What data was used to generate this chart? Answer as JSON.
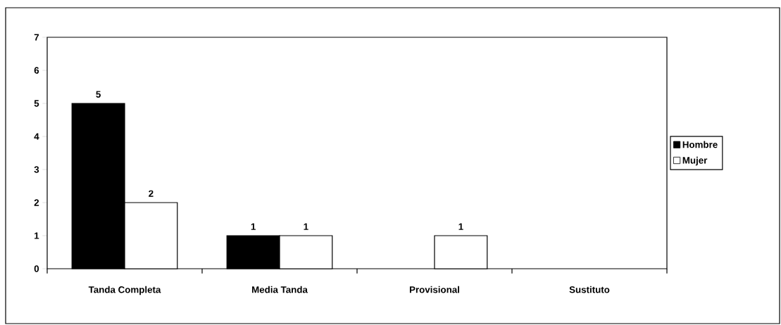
{
  "chart_data": {
    "type": "bar",
    "categories": [
      "Tanda Completa",
      "Media Tanda",
      "Provisional",
      "Sustituto"
    ],
    "series": [
      {
        "name": "Hombre",
        "color": "#000000",
        "values": [
          5,
          1,
          0,
          0
        ],
        "value_labels": [
          "5",
          "1",
          null,
          null
        ]
      },
      {
        "name": "Mujer",
        "color": "#ffffff",
        "values": [
          2,
          1,
          1,
          0
        ],
        "value_labels": [
          "2",
          "1",
          "1",
          null
        ]
      }
    ],
    "ylim": [
      0,
      7
    ],
    "yticks": [
      0,
      1,
      2,
      3,
      4,
      5,
      6,
      7
    ],
    "grid": false,
    "legend": "right"
  }
}
